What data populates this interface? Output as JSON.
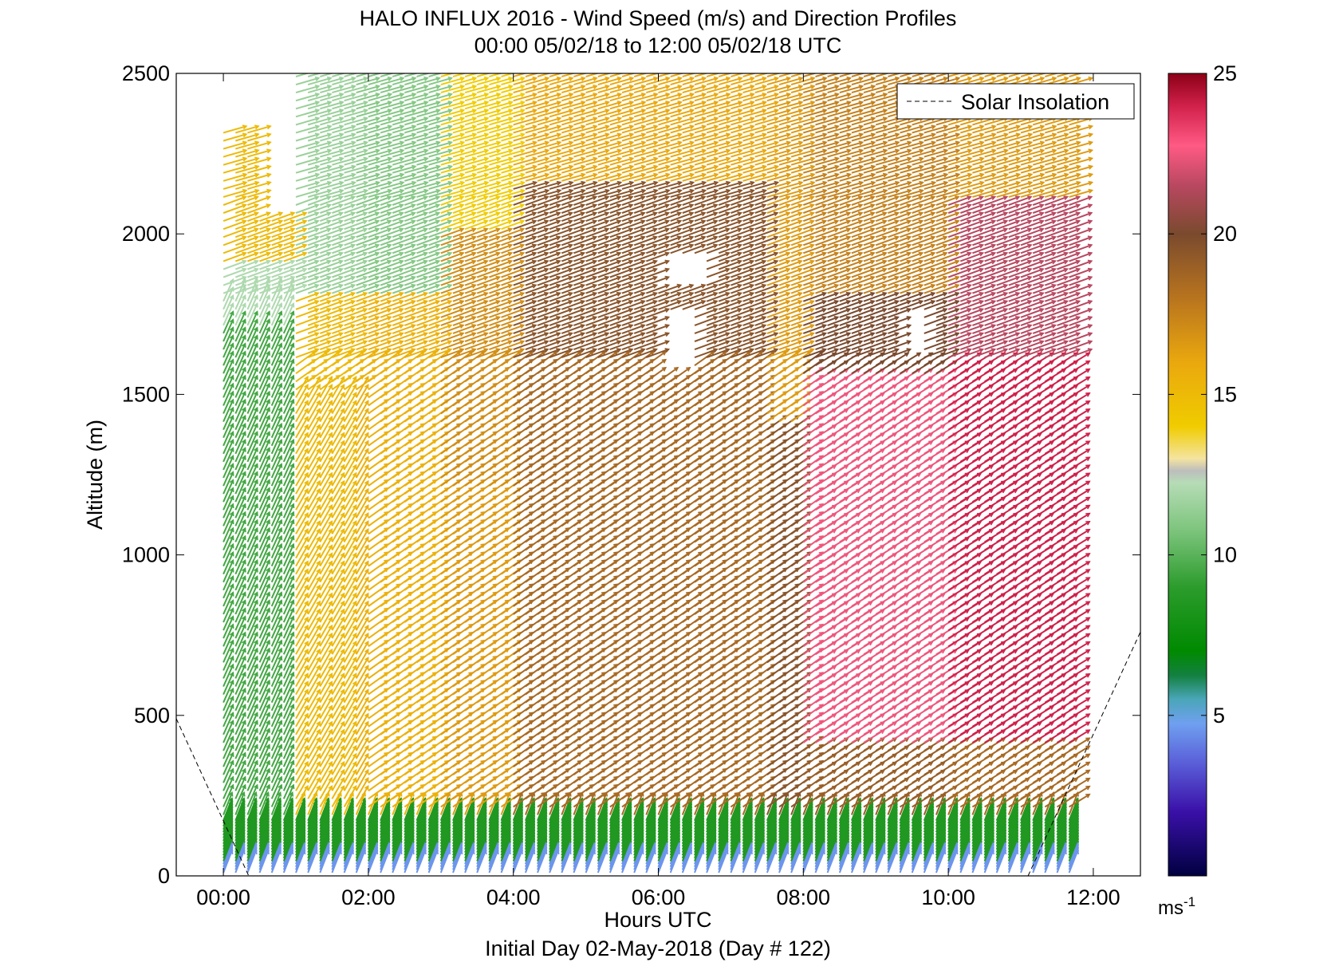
{
  "chart_data": {
    "type": "wind-barb-profile",
    "title": "HALO INFLUX 2016 - Wind Speed (m/s) and Direction Profiles",
    "subtitle": "00:00 05/02/18 to 12:00 05/02/18  UTC",
    "xlabel": "Hours UTC",
    "footer": "Initial Day 02-May-2018 (Day # 122)",
    "ylabel": "Altitude (m)",
    "xlim": [
      -0.65,
      12.65
    ],
    "ylim": [
      0,
      2500
    ],
    "x_ticks": [
      0,
      2,
      4,
      6,
      8,
      10,
      12
    ],
    "x_tick_labels": [
      "00:00",
      "02:00",
      "04:00",
      "06:00",
      "08:00",
      "10:00",
      "12:00"
    ],
    "y_ticks": [
      0,
      500,
      1000,
      1500,
      2000,
      2500
    ],
    "y_tick_labels": [
      "0",
      "500",
      "1000",
      "1500",
      "2000",
      "2500"
    ],
    "colorbar": {
      "range": [
        0,
        25
      ],
      "ticks": [
        5,
        10,
        15,
        20,
        25
      ],
      "tick_labels": [
        "5",
        "10",
        "15",
        "20",
        "25"
      ],
      "unit_base": "ms",
      "unit_sup": "-1"
    },
    "legend": {
      "label": "Solar Insolation",
      "position": "top-right"
    },
    "solar_insolation": [
      {
        "x": [
          -0.65,
          0.35
        ],
        "y": [
          490,
          0
        ]
      },
      {
        "x": [
          11.1,
          12.65
        ],
        "y": [
          0,
          760
        ]
      }
    ],
    "profile_times_hours": [
      0.0,
      0.33,
      0.67,
      1.0,
      1.33,
      1.67,
      2.0,
      2.33,
      2.67,
      3.0,
      3.33,
      3.67,
      4.0,
      4.33,
      4.67,
      5.0,
      5.33,
      5.67,
      6.0,
      6.33,
      6.67,
      7.0,
      7.33,
      7.67,
      8.0,
      8.33,
      8.67,
      9.0,
      9.33,
      9.67,
      10.0,
      10.33,
      10.67,
      11.0,
      11.33,
      11.67
    ],
    "altitude_levels_m": [
      0,
      20,
      40,
      60,
      80,
      100,
      125,
      150,
      175,
      200,
      250,
      300,
      350,
      400,
      450,
      500,
      550,
      600,
      650,
      700,
      750,
      800,
      850,
      900,
      950,
      1000,
      1100,
      1200,
      1300,
      1400,
      1500,
      1600,
      1700,
      1800,
      1900,
      2000,
      2100,
      2200,
      2300,
      2400,
      2500
    ],
    "speed_profile_model": "approximate wind speed (m/s) vs altitude per profile, read from colour; direction mostly from south-west (vectors pointing north-east)",
    "speed_summary": [
      {
        "period": "00:00-01:00",
        "low_levels": 9,
        "mid_levels": 10,
        "upper_levels": 15
      },
      {
        "period": "01:00-03:00",
        "low_levels": 8,
        "mid_levels": 15,
        "upper_levels": 12
      },
      {
        "period": "03:00-07:00",
        "low_levels": 9,
        "mid_levels": 19,
        "upper_levels": 19
      },
      {
        "period": "08:00-10:00",
        "low_levels": 9,
        "mid_levels": 22,
        "upper_levels": 18
      },
      {
        "period": "10:00-11:45",
        "low_levels": 8,
        "mid_levels": 24,
        "upper_levels": 17
      }
    ]
  }
}
